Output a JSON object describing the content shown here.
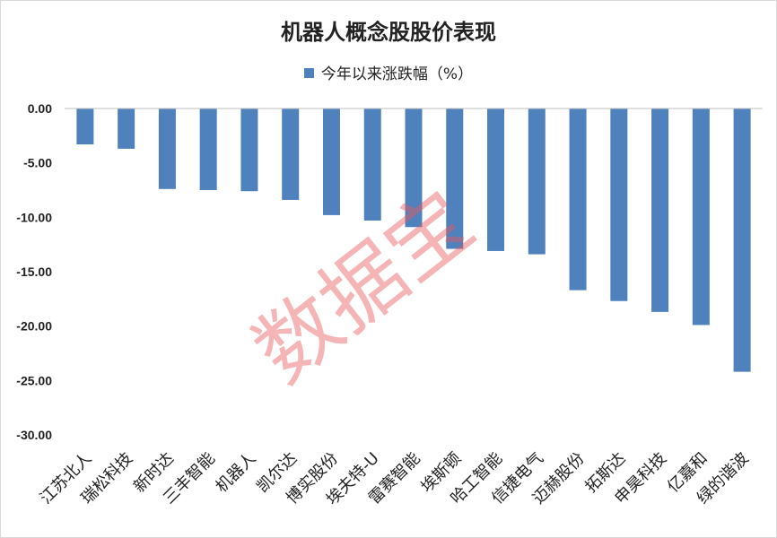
{
  "chart_data": {
    "type": "bar",
    "title": "机器人概念股股价表现",
    "legend": "今年以来涨跌幅（%）",
    "categories": [
      "江苏北人",
      "瑞松科技",
      "新时达",
      "三丰智能",
      "机器人",
      "凯尔达",
      "博实股份",
      "埃夫特-U",
      "雷赛智能",
      "埃斯顿",
      "哈工智能",
      "信捷电气",
      "迈赫股份",
      "拓斯达",
      "申昊科技",
      "亿嘉和",
      "绿的谐波"
    ],
    "values": [
      -3.3,
      -3.7,
      -7.4,
      -7.5,
      -7.6,
      -8.4,
      -9.8,
      -10.3,
      -10.9,
      -12.9,
      -13.1,
      -13.4,
      -16.7,
      -17.7,
      -18.7,
      -19.9,
      -24.2
    ],
    "yticks": [
      "0.00",
      "-5.00",
      "-10.00",
      "-15.00",
      "-20.00",
      "-25.00",
      "-30.00"
    ],
    "ylim": [
      -30,
      0
    ],
    "grid": false,
    "legend_position": "top-center",
    "bar_color": "#4f81bd",
    "xlabel": "",
    "ylabel": ""
  },
  "watermark": "数据宝"
}
